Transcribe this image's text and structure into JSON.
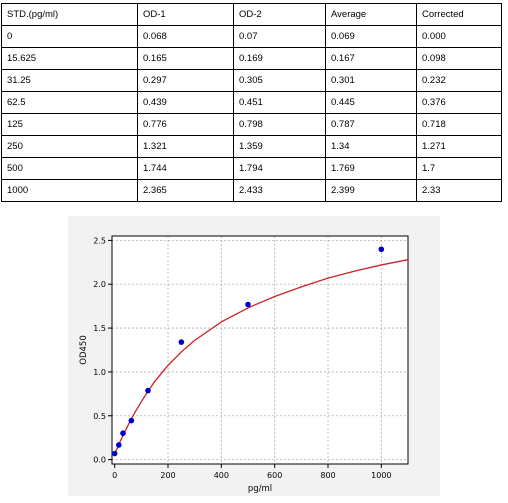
{
  "table": {
    "headers": [
      "STD.(pg/ml)",
      "OD-1",
      "OD-2",
      "Average",
      "Corrected"
    ],
    "rows": [
      [
        "0",
        "0.068",
        "0.07",
        "0.069",
        "0.000"
      ],
      [
        "15.625",
        "0.165",
        "0.169",
        "0.167",
        "0.098"
      ],
      [
        "31.25",
        "0.297",
        "0.305",
        "0.301",
        "0.232"
      ],
      [
        "62.5",
        "0.439",
        "0.451",
        "0.445",
        "0.376"
      ],
      [
        "125",
        "0.776",
        "0.798",
        "0.787",
        "0.718"
      ],
      [
        "250",
        "1.321",
        "1.359",
        "1.34",
        "1.271"
      ],
      [
        "500",
        "1.744",
        "1.794",
        "1.769",
        "1.7"
      ],
      [
        "1000",
        "2.365",
        "2.433",
        "2.399",
        "2.33"
      ]
    ]
  },
  "chart_data": {
    "type": "scatter",
    "xlabel": "pg/ml",
    "ylabel": "OD450",
    "xlim": [
      -10,
      1100
    ],
    "ylim": [
      -0.05,
      2.55
    ],
    "xticks": [
      0,
      200,
      400,
      600,
      800,
      1000
    ],
    "xtick_labels": [
      "0",
      "200",
      "400",
      "600",
      "800",
      "1000"
    ],
    "yticks": [
      0,
      0.5,
      1,
      1.5,
      2,
      2.5
    ],
    "ytick_labels": [
      "0.0",
      "0.5",
      "1.0",
      "1.5",
      "2.0",
      "2.5"
    ],
    "grid": true,
    "points": {
      "x": [
        0,
        15.625,
        31.25,
        62.5,
        125,
        250,
        500,
        1000
      ],
      "y": [
        0.069,
        0.167,
        0.301,
        0.445,
        0.787,
        1.34,
        1.769,
        2.399
      ],
      "color": "#0000cc"
    },
    "curve": {
      "x": [
        0,
        5,
        10,
        15.625,
        20,
        31.25,
        40,
        50,
        62.5,
        80,
        100,
        125,
        150,
        200,
        250,
        300,
        400,
        500,
        600,
        700,
        800,
        900,
        1000,
        1100
      ],
      "y": [
        0.06,
        0.097,
        0.132,
        0.171,
        0.202,
        0.275,
        0.33,
        0.39,
        0.464,
        0.559,
        0.662,
        0.78,
        0.89,
        1.075,
        1.228,
        1.36,
        1.57,
        1.73,
        1.86,
        1.97,
        2.07,
        2.15,
        2.22,
        2.28
      ],
      "color": "#cc2222"
    }
  }
}
